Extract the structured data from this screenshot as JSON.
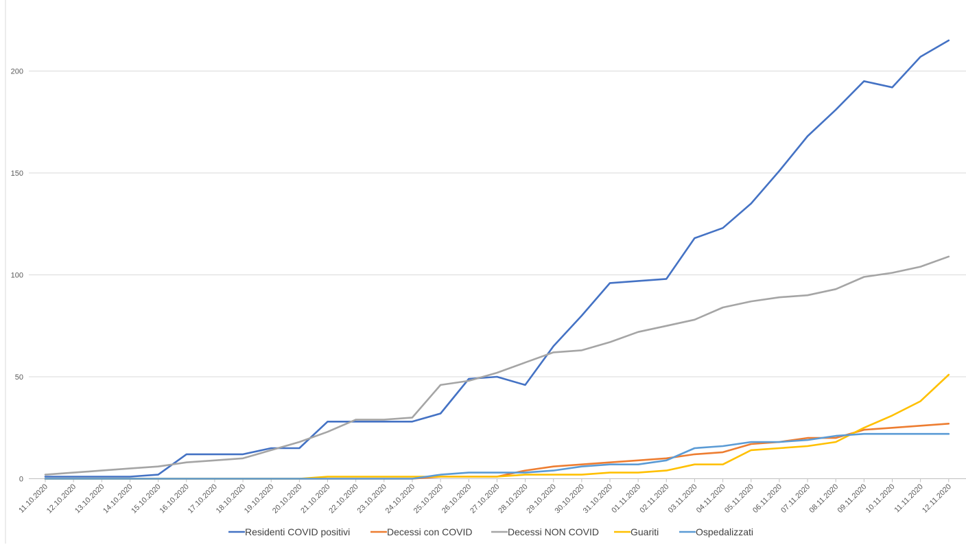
{
  "chart_data": {
    "type": "line",
    "title": "",
    "xlabel": "",
    "ylabel": "",
    "ylim": [
      0,
      220
    ],
    "yticks": [
      "0",
      "50",
      "100",
      "150",
      "200"
    ],
    "grid": "horizontal",
    "legend_position": "bottom",
    "categories": [
      "11.10.2020",
      "12.10.2020",
      "13.10.2020",
      "14.10.2020",
      "15.10.2020",
      "16.10.2020",
      "17.10.2020",
      "18.10.2020",
      "19.10.2020",
      "20.10.2020",
      "21.10.2020",
      "22.10.2020",
      "23.10.2020",
      "24.10.2020",
      "25.10.2020",
      "26.10.2020",
      "27.10.2020",
      "28.10.2020",
      "29.10.2020",
      "30.10.2020",
      "31.10.2020",
      "01.11.2020",
      "02.11.2020",
      "03.11.2020",
      "04.11.2020",
      "05.11.2020",
      "06.11.2020",
      "07.11.2020",
      "08.11.2020",
      "09.11.2020",
      "10.11.2020",
      "11.11.2020",
      "12.11.2020"
    ],
    "series": [
      {
        "name": "Residenti COVID positivi",
        "color": "#4472C4",
        "values": [
          1,
          1,
          1,
          1,
          2,
          12,
          12,
          12,
          15,
          15,
          28,
          28,
          28,
          28,
          32,
          49,
          50,
          46,
          65,
          80,
          96,
          97,
          98,
          118,
          123,
          135,
          151,
          168,
          181,
          195,
          192,
          207,
          215
        ]
      },
      {
        "name": "Decessi con COVID",
        "color": "#ED7D31",
        "values": [
          0,
          0,
          0,
          0,
          0,
          0,
          0,
          0,
          0,
          0,
          0,
          0,
          0,
          0,
          1,
          1,
          1,
          4,
          6,
          7,
          8,
          9,
          10,
          12,
          13,
          17,
          18,
          20,
          20,
          24,
          25,
          26,
          27
        ]
      },
      {
        "name": "Decessi NON COVID",
        "color": "#A5A5A5",
        "values": [
          2,
          3,
          4,
          5,
          6,
          8,
          9,
          10,
          14,
          18,
          23,
          29,
          29,
          30,
          46,
          48,
          52,
          57,
          62,
          63,
          67,
          72,
          75,
          78,
          84,
          87,
          89,
          90,
          93,
          99,
          101,
          104,
          109
        ]
      },
      {
        "name": "Guariti",
        "color": "#FFC000",
        "values": [
          0,
          0,
          0,
          0,
          0,
          0,
          0,
          0,
          0,
          0,
          1,
          1,
          1,
          1,
          1,
          1,
          1,
          2,
          2,
          2,
          3,
          3,
          4,
          7,
          7,
          14,
          15,
          16,
          18,
          25,
          31,
          38,
          51
        ]
      },
      {
        "name": "Ospedalizzati",
        "color": "#5B9BD5",
        "values": [
          0,
          0,
          0,
          0,
          0,
          0,
          0,
          0,
          0,
          0,
          0,
          0,
          0,
          0,
          2,
          3,
          3,
          3,
          4,
          6,
          7,
          7,
          9,
          15,
          16,
          18,
          18,
          19,
          21,
          22,
          22,
          22,
          22
        ]
      }
    ]
  }
}
